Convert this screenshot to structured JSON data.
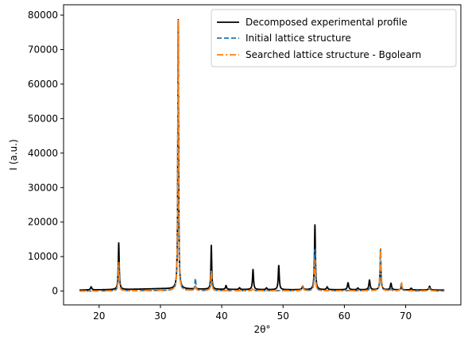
{
  "chart_data": {
    "type": "line",
    "xlabel": "2θ°",
    "ylabel": "I (a.u.)",
    "xlim": [
      14.2,
      79.0
    ],
    "ylim": [
      -4000,
      83000
    ],
    "xticks": [
      20,
      30,
      40,
      50,
      60,
      70
    ],
    "yticks": [
      0,
      10000,
      20000,
      30000,
      40000,
      50000,
      60000,
      70000,
      80000
    ],
    "grid": false,
    "legend_position": "top-right",
    "x_range": [
      16.8,
      76.3
    ],
    "series": [
      {
        "name": "Decomposed experimental profile",
        "color": "#000000",
        "dash": "solid",
        "baseline": [
          [
            16.8,
            300
          ],
          [
            25,
            500
          ],
          [
            30,
            700
          ],
          [
            40,
            500
          ],
          [
            50,
            400
          ],
          [
            60,
            400
          ],
          [
            76.3,
            300
          ]
        ],
        "peaks": [
          {
            "x": 18.7,
            "h": 900,
            "w": 0.12
          },
          {
            "x": 23.2,
            "h": 13500,
            "w": 0.09
          },
          {
            "x": 32.9,
            "h": 78000,
            "w": 0.07
          },
          {
            "x": 35.7,
            "h": 700,
            "w": 0.1
          },
          {
            "x": 38.3,
            "h": 12700,
            "w": 0.08
          },
          {
            "x": 40.7,
            "h": 1100,
            "w": 0.1
          },
          {
            "x": 42.9,
            "h": 500,
            "w": 0.1
          },
          {
            "x": 45.1,
            "h": 5800,
            "w": 0.1
          },
          {
            "x": 47.3,
            "h": 500,
            "w": 0.1
          },
          {
            "x": 49.3,
            "h": 7000,
            "w": 0.1
          },
          {
            "x": 53.2,
            "h": 1000,
            "w": 0.12
          },
          {
            "x": 55.2,
            "h": 18800,
            "w": 0.09
          },
          {
            "x": 57.2,
            "h": 800,
            "w": 0.12
          },
          {
            "x": 60.6,
            "h": 2000,
            "w": 0.12
          },
          {
            "x": 62.2,
            "h": 500,
            "w": 0.12
          },
          {
            "x": 64.1,
            "h": 2800,
            "w": 0.12
          },
          {
            "x": 65.9,
            "h": 8200,
            "w": 0.1
          },
          {
            "x": 67.6,
            "h": 1900,
            "w": 0.12
          },
          {
            "x": 69.3,
            "h": 700,
            "w": 0.12
          },
          {
            "x": 70.9,
            "h": 500,
            "w": 0.12
          },
          {
            "x": 73.9,
            "h": 1100,
            "w": 0.12
          }
        ]
      },
      {
        "name": "Initial lattice structure",
        "color": "#1f77b4",
        "dash": "dashed",
        "baseline": [
          [
            16.8,
            0
          ],
          [
            30,
            150
          ],
          [
            40,
            120
          ],
          [
            60,
            100
          ],
          [
            76.3,
            50
          ]
        ],
        "peaks": [
          {
            "x": 23.2,
            "h": 7800,
            "w": 0.1
          },
          {
            "x": 32.9,
            "h": 78000,
            "w": 0.07
          },
          {
            "x": 35.7,
            "h": 3500,
            "w": 0.1
          },
          {
            "x": 38.3,
            "h": 5500,
            "w": 0.1
          },
          {
            "x": 45.1,
            "h": 700,
            "w": 0.12
          },
          {
            "x": 53.2,
            "h": 1200,
            "w": 0.12
          },
          {
            "x": 55.2,
            "h": 12000,
            "w": 0.1
          },
          {
            "x": 64.1,
            "h": 800,
            "w": 0.12
          },
          {
            "x": 65.9,
            "h": 12000,
            "w": 0.1
          },
          {
            "x": 67.6,
            "h": 500,
            "w": 0.12
          },
          {
            "x": 69.3,
            "h": 2000,
            "w": 0.12
          },
          {
            "x": 73.9,
            "h": 800,
            "w": 0.12
          }
        ]
      },
      {
        "name": "Searched lattice structure - Bgolearn",
        "color": "#ff7f0e",
        "dash": "dashdot",
        "baseline": [
          [
            16.8,
            0
          ],
          [
            30,
            200
          ],
          [
            40,
            150
          ],
          [
            60,
            120
          ],
          [
            76.3,
            60
          ]
        ],
        "peaks": [
          {
            "x": 23.2,
            "h": 8200,
            "w": 0.1
          },
          {
            "x": 32.9,
            "h": 78500,
            "w": 0.07
          },
          {
            "x": 35.7,
            "h": 1500,
            "w": 0.1
          },
          {
            "x": 38.3,
            "h": 5800,
            "w": 0.1
          },
          {
            "x": 45.1,
            "h": 800,
            "w": 0.12
          },
          {
            "x": 53.2,
            "h": 1500,
            "w": 0.12
          },
          {
            "x": 55.2,
            "h": 9000,
            "w": 0.1
          },
          {
            "x": 64.1,
            "h": 900,
            "w": 0.12
          },
          {
            "x": 65.9,
            "h": 12200,
            "w": 0.1
          },
          {
            "x": 67.6,
            "h": 600,
            "w": 0.12
          },
          {
            "x": 69.3,
            "h": 2500,
            "w": 0.12
          },
          {
            "x": 73.9,
            "h": 900,
            "w": 0.12
          }
        ]
      }
    ]
  }
}
